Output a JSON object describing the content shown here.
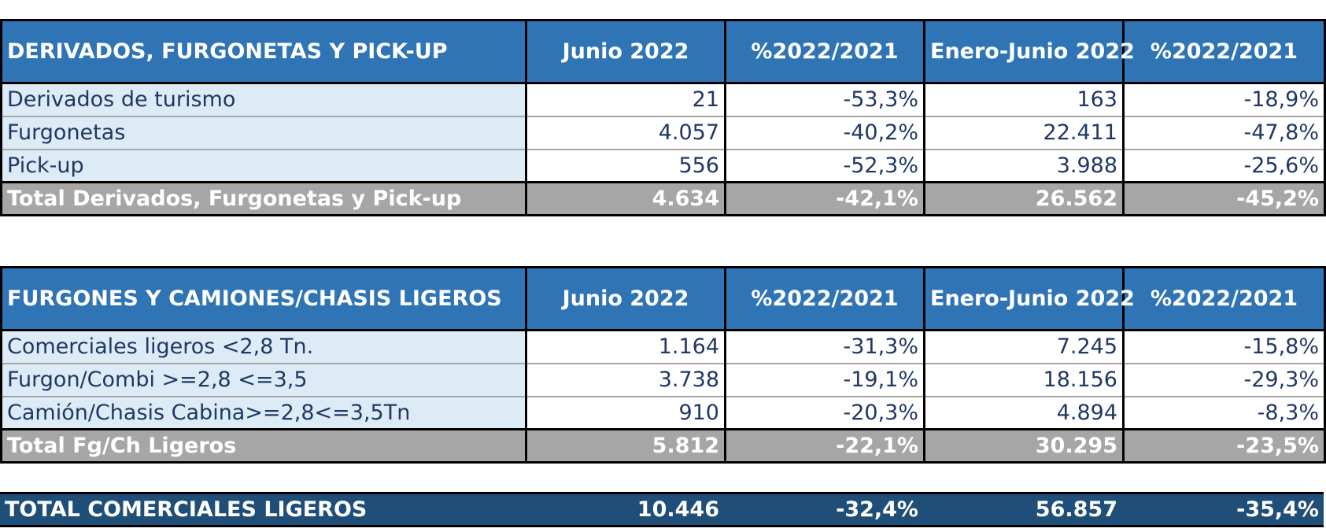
{
  "section1": {
    "header": [
      "DERIVADOS, FURGONETAS Y PICK-UP",
      "Junio 2022",
      "%2022/2021",
      "Enero-Junio 2022",
      "%2022/2021"
    ],
    "rows": [
      [
        "Derivados de turismo",
        "21",
        "-53,3%",
        "163",
        "-18,9%"
      ],
      [
        "Furgonetas",
        "4.057",
        "-40,2%",
        "22.411",
        "-47,8%"
      ],
      [
        "Pick-up",
        "556",
        "-52,3%",
        "3.988",
        "-25,6%"
      ]
    ],
    "total": [
      "Total Derivados, Furgonetas y Pick-up",
      "4.634",
      "-42,1%",
      "26.562",
      "-45,2%"
    ]
  },
  "section2": {
    "header": [
      "FURGONES Y CAMIONES/CHASIS LIGEROS",
      "Junio 2022",
      "%2022/2021",
      "Enero-Junio 2022",
      "%2022/2021"
    ],
    "rows": [
      [
        "Comerciales ligeros <2,8 Tn.",
        "1.164",
        "-31,3%",
        "7.245",
        "-15,8%"
      ],
      [
        "Furgon/Combi >=2,8 <=3,5",
        "3.738",
        "-19,1%",
        "18.156",
        "-29,3%"
      ],
      [
        "Camión/Chasis Cabina>=2,8<=3,5Tn",
        "910",
        "-20,3%",
        "4.894",
        "-8,3%"
      ]
    ],
    "total": [
      "Total Fg/Ch Ligeros",
      "5.812",
      "-22,1%",
      "30.295",
      "-23,5%"
    ]
  },
  "grand_total": [
    "TOTAL COMERCIALES LIGEROS",
    "10.446",
    "-32,4%",
    "56.857",
    "-35,4%"
  ],
  "colors": {
    "header_blue": "#2f74b5",
    "row_label_bg": "#ddebf7",
    "total_gray": "#a6a6a6",
    "grand_total_navy": "#1f4e78",
    "body_text": "#1f3864"
  }
}
